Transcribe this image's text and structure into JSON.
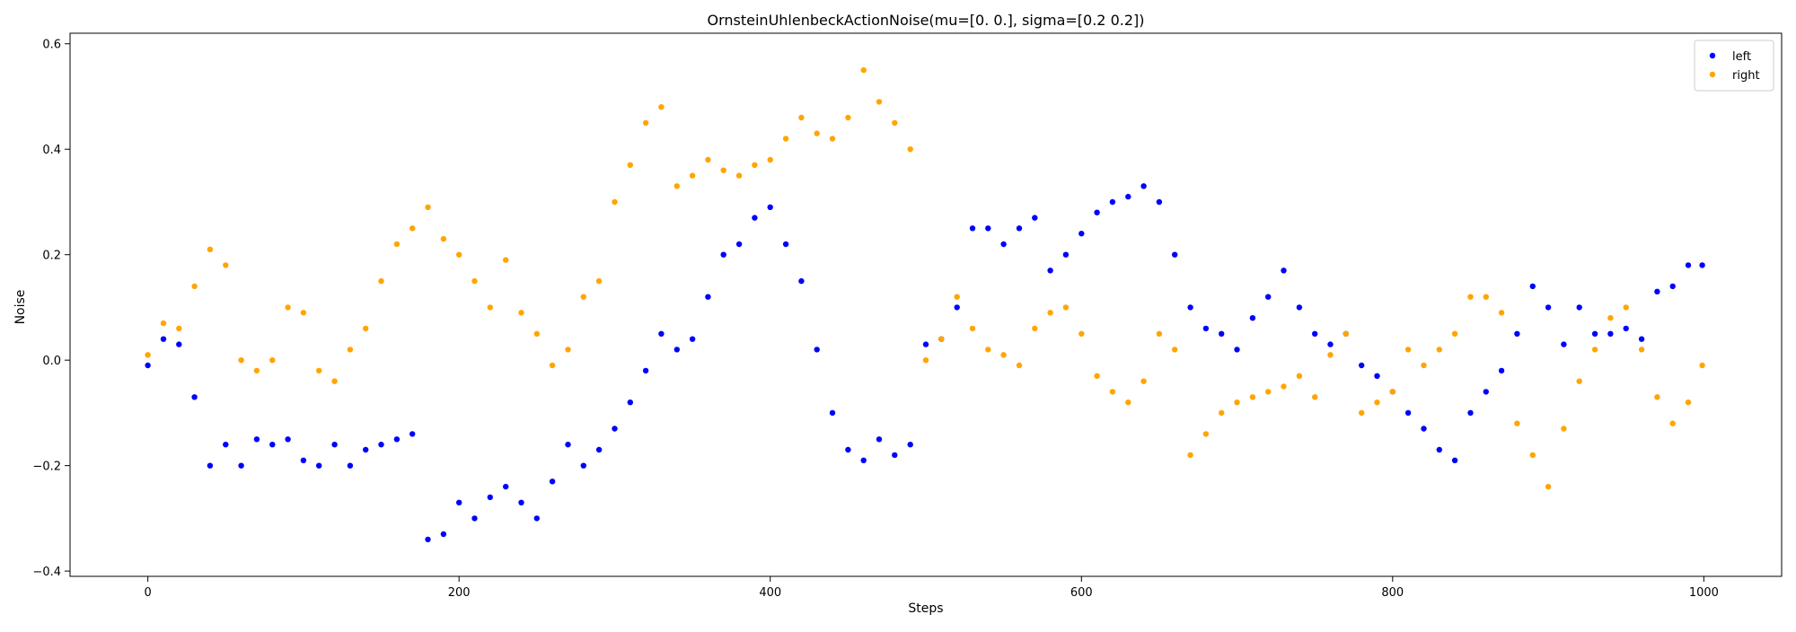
{
  "chart_data": {
    "type": "scatter",
    "title": "OrnsteinUhlenbeckActionNoise(mu=[0. 0.], sigma=[0.2 0.2])",
    "xlabel": "Steps",
    "ylabel": "Noise",
    "xlim": [
      -50,
      1050
    ],
    "ylim": [
      -0.41,
      0.62
    ],
    "xticks": [
      0,
      200,
      400,
      600,
      800,
      1000
    ],
    "xtick_labels": [
      "0",
      "200",
      "400",
      "600",
      "800",
      "1000"
    ],
    "yticks": [
      -0.4,
      -0.2,
      0.0,
      0.2,
      0.4,
      0.6
    ],
    "ytick_labels": [
      "−0.4",
      "−0.2",
      "0.0",
      "0.2",
      "0.4",
      "0.6"
    ],
    "grid": false,
    "legend_position": "top-right",
    "series": [
      {
        "name": "left",
        "color": "#0000ff",
        "x": [
          0,
          10,
          20,
          30,
          40,
          50,
          60,
          70,
          80,
          90,
          100,
          110,
          120,
          130,
          140,
          150,
          160,
          170,
          180,
          190,
          200,
          210,
          220,
          230,
          240,
          250,
          260,
          270,
          280,
          290,
          300,
          310,
          320,
          330,
          340,
          350,
          360,
          370,
          380,
          390,
          400,
          410,
          420,
          430,
          440,
          450,
          460,
          470,
          480,
          490,
          500,
          510,
          520,
          530,
          540,
          550,
          560,
          570,
          580,
          590,
          600,
          610,
          620,
          630,
          640,
          650,
          660,
          670,
          680,
          690,
          700,
          710,
          720,
          730,
          740,
          750,
          760,
          770,
          780,
          790,
          800,
          810,
          820,
          830,
          840,
          850,
          860,
          870,
          880,
          890,
          900,
          910,
          920,
          930,
          940,
          950,
          960,
          970,
          980,
          990,
          999
        ],
        "y": [
          -0.01,
          0.04,
          0.03,
          -0.07,
          -0.2,
          -0.16,
          -0.2,
          -0.15,
          -0.16,
          -0.15,
          -0.19,
          -0.2,
          -0.16,
          -0.2,
          -0.17,
          -0.16,
          -0.15,
          -0.14,
          -0.34,
          -0.33,
          -0.27,
          -0.3,
          -0.26,
          -0.24,
          -0.27,
          -0.3,
          -0.23,
          -0.16,
          -0.2,
          -0.17,
          -0.13,
          -0.08,
          -0.02,
          0.05,
          0.02,
          0.04,
          0.12,
          0.2,
          0.22,
          0.27,
          0.29,
          0.22,
          0.15,
          0.02,
          -0.1,
          -0.17,
          -0.19,
          -0.15,
          -0.18,
          -0.16,
          0.03,
          0.04,
          0.1,
          0.25,
          0.25,
          0.22,
          0.25,
          0.27,
          0.17,
          0.2,
          0.24,
          0.28,
          0.3,
          0.31,
          0.33,
          0.3,
          0.2,
          0.1,
          0.06,
          0.05,
          0.02,
          0.08,
          0.12,
          0.17,
          0.1,
          0.05,
          0.03,
          0.05,
          -0.01,
          -0.03,
          -0.06,
          -0.1,
          -0.13,
          -0.17,
          -0.19,
          -0.1,
          -0.06,
          -0.02,
          0.05,
          0.14,
          0.1,
          0.03,
          0.1,
          0.05,
          0.05,
          0.06,
          0.04,
          0.13,
          0.14,
          0.18,
          0.18
        ]
      },
      {
        "name": "right",
        "color": "#ffa500",
        "x": [
          0,
          10,
          20,
          30,
          40,
          50,
          60,
          70,
          80,
          90,
          100,
          110,
          120,
          130,
          140,
          150,
          160,
          170,
          180,
          190,
          200,
          210,
          220,
          230,
          240,
          250,
          260,
          270,
          280,
          290,
          300,
          310,
          320,
          330,
          340,
          350,
          360,
          370,
          380,
          390,
          400,
          410,
          420,
          430,
          440,
          450,
          460,
          470,
          480,
          490,
          500,
          510,
          520,
          530,
          540,
          550,
          560,
          570,
          580,
          590,
          600,
          610,
          620,
          630,
          640,
          650,
          660,
          670,
          680,
          690,
          700,
          710,
          720,
          730,
          740,
          750,
          760,
          770,
          780,
          790,
          800,
          810,
          820,
          830,
          840,
          850,
          860,
          870,
          880,
          890,
          900,
          910,
          920,
          930,
          940,
          950,
          960,
          970,
          980,
          990,
          999
        ],
        "y": [
          0.01,
          0.07,
          0.06,
          0.14,
          0.21,
          0.18,
          0.0,
          -0.02,
          0.0,
          0.1,
          0.09,
          -0.02,
          -0.04,
          0.02,
          0.06,
          0.15,
          0.22,
          0.25,
          0.29,
          0.23,
          0.2,
          0.15,
          0.1,
          0.19,
          0.09,
          0.05,
          -0.01,
          0.02,
          0.12,
          0.15,
          0.3,
          0.37,
          0.45,
          0.48,
          0.33,
          0.35,
          0.38,
          0.36,
          0.35,
          0.37,
          0.38,
          0.42,
          0.46,
          0.43,
          0.42,
          0.46,
          0.55,
          0.49,
          0.45,
          0.4,
          0.0,
          0.04,
          0.12,
          0.06,
          0.02,
          0.01,
          -0.01,
          0.06,
          0.09,
          0.1,
          0.05,
          -0.03,
          -0.06,
          -0.08,
          -0.04,
          0.05,
          0.02,
          -0.18,
          -0.14,
          -0.1,
          -0.08,
          -0.07,
          -0.06,
          -0.05,
          -0.03,
          -0.07,
          0.01,
          0.05,
          -0.1,
          -0.08,
          -0.06,
          0.02,
          -0.01,
          0.02,
          0.05,
          0.12,
          0.12,
          0.09,
          -0.12,
          -0.18,
          -0.24,
          -0.13,
          -0.04,
          0.02,
          0.08,
          0.1,
          0.02,
          -0.07,
          -0.12,
          -0.08,
          -0.01
        ]
      }
    ]
  }
}
